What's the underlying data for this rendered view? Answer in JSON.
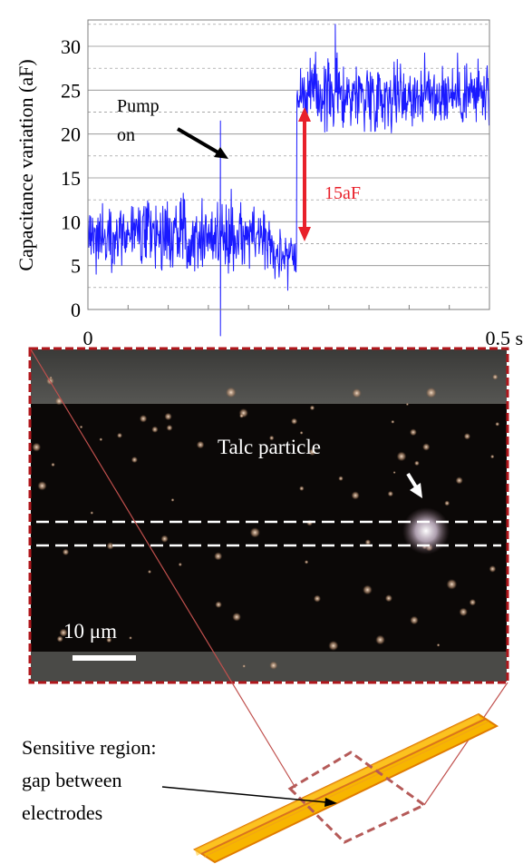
{
  "chart_data": {
    "type": "line",
    "ylabel": "Capacitance variation (aF)",
    "ylim": [
      0,
      33
    ],
    "yticks": [
      0,
      5,
      10,
      15,
      20,
      25,
      30
    ],
    "xlim": [
      0,
      0.5
    ],
    "xtick_labels": [
      "0",
      "0.5 s"
    ],
    "grid": "horizontal, solid at multiples of 5, dashed at intermediate values",
    "colors": {
      "signal": "#1a1aff",
      "annotation": "#e8202a",
      "arrow": "#000000"
    },
    "series": [
      {
        "segments": [
          {
            "x_start": 0.0,
            "x_end": 0.227,
            "mean": 8.5,
            "noise_amplitude": 4.0
          },
          {
            "x_start": 0.227,
            "x_end": 0.26,
            "mean": 6.5,
            "noise_amplitude": 3.5
          },
          {
            "x_start": 0.26,
            "x_end": 0.5,
            "mean": 24.5,
            "noise_amplitude": 4.0
          }
        ],
        "spikes": [
          {
            "x": 0.165,
            "y": 21.5
          },
          {
            "x": 0.165,
            "y": -3.0
          },
          {
            "x": 0.308,
            "y": 32.5
          }
        ]
      }
    ],
    "annotations": {
      "pump_label_line1": "Pump",
      "pump_label_line2": "on",
      "step_label": "15aF"
    }
  },
  "micrograph": {
    "particle_label": "Talc particle",
    "scale_label": "10 μm",
    "border_color": "#b0171c"
  },
  "schematic": {
    "caption_line1": "Sensitive region:",
    "caption_line2": "gap between",
    "caption_line3": "electrodes",
    "electrode_color": "#f7b500",
    "electrode_outline": "#e07b00"
  }
}
